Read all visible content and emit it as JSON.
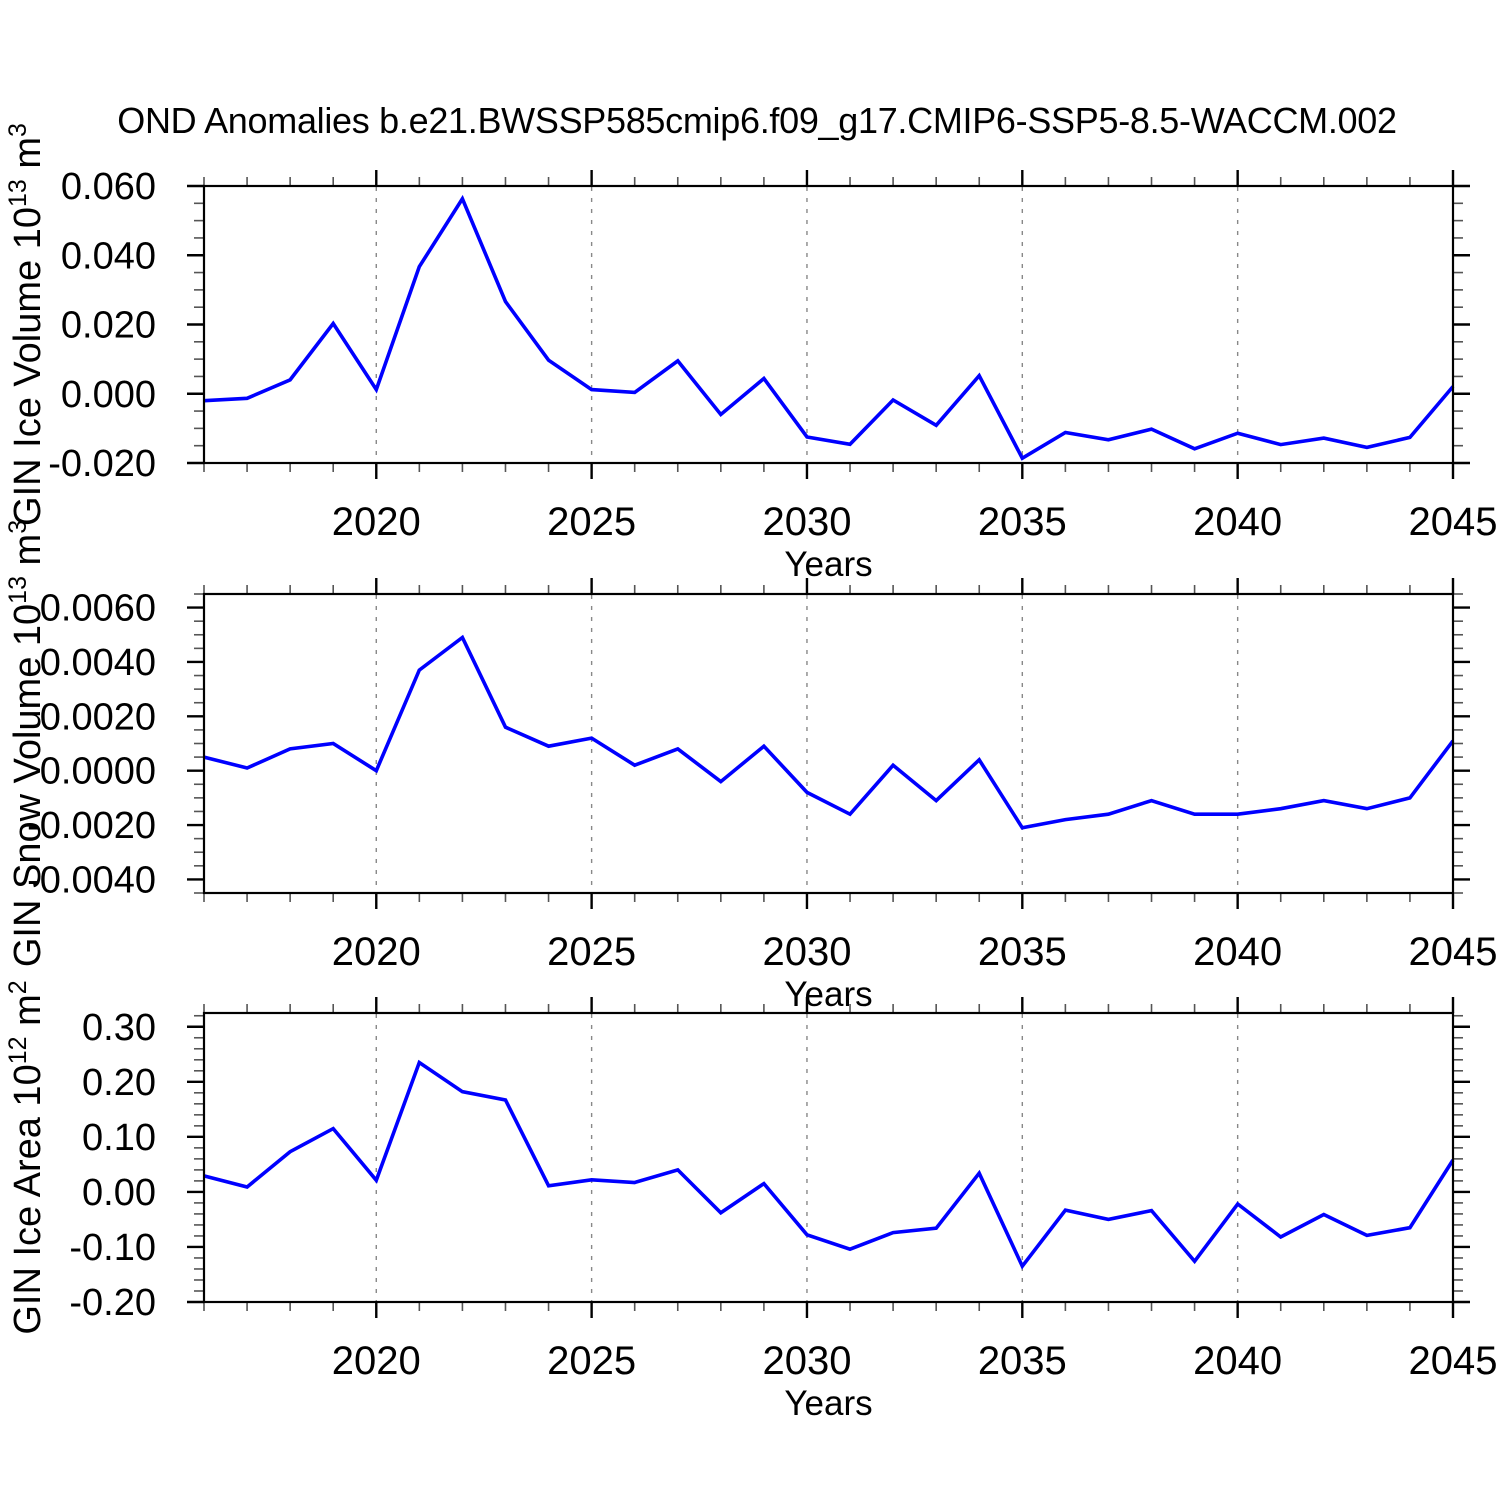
{
  "title": "OND Anomalies b.e21.BWSSP585cmip6.f09_g17.CMIP6-SSP5-8.5-WACCM.002",
  "line_color": "#0000ff",
  "grid_color": "#888888",
  "axis_color": "#000000",
  "minor_tick_color": "#555555",
  "chart_data": [
    {
      "type": "line",
      "ylabel_parts": [
        [
          "t",
          "GIN Ice Volume 10"
        ],
        [
          "s",
          "13"
        ],
        [
          "t",
          " m"
        ],
        [
          "s",
          "3"
        ]
      ],
      "xlabel": "Years",
      "xlim": [
        2016,
        2045
      ],
      "ylim": [
        -0.02,
        0.06
      ],
      "x": [
        2016,
        2017,
        2018,
        2019,
        2020,
        2021,
        2022,
        2023,
        2024,
        2025,
        2026,
        2027,
        2028,
        2029,
        2030,
        2031,
        2032,
        2033,
        2034,
        2035,
        2036,
        2037,
        2038,
        2039,
        2040,
        2041,
        2042,
        2043,
        2044,
        2045
      ],
      "values": [
        -0.002,
        -0.0013,
        0.004,
        0.0203,
        0.0012,
        0.0367,
        0.0563,
        0.0266,
        0.0097,
        0.0012,
        0.0004,
        0.0095,
        -0.006,
        0.0044,
        -0.0125,
        -0.0146,
        -0.0018,
        -0.0091,
        0.0052,
        -0.0186,
        -0.0112,
        -0.0133,
        -0.0102,
        -0.0159,
        -0.0114,
        -0.0147,
        -0.0128,
        -0.0155,
        -0.0126,
        0.0021
      ],
      "y_tick_values": [
        -0.02,
        0.0,
        0.02,
        0.04,
        0.06
      ],
      "y_tick_labels": [
        "-0.020",
        "0.000",
        "0.020",
        "0.040",
        "0.060"
      ],
      "y_minor_step": 0.005,
      "x_tick_values": [
        2020,
        2025,
        2030,
        2035,
        2040,
        2045
      ],
      "x_tick_labels": [
        "2020",
        "2025",
        "2030",
        "2035",
        "2040",
        "2045"
      ],
      "gridline_years": [
        2020,
        2025,
        2030,
        2035,
        2040
      ]
    },
    {
      "type": "line",
      "ylabel_parts": [
        [
          "t",
          "GIN Snow Volume 10"
        ],
        [
          "s",
          "13"
        ],
        [
          "t",
          " m"
        ],
        [
          "s",
          "3"
        ]
      ],
      "xlabel": "Years",
      "xlim": [
        2016,
        2045
      ],
      "ylim": [
        -0.0045,
        0.0065
      ],
      "x": [
        2016,
        2017,
        2018,
        2019,
        2020,
        2021,
        2022,
        2023,
        2024,
        2025,
        2026,
        2027,
        2028,
        2029,
        2030,
        2031,
        2032,
        2033,
        2034,
        2035,
        2036,
        2037,
        2038,
        2039,
        2040,
        2041,
        2042,
        2043,
        2044,
        2045
      ],
      "values": [
        0.0005,
        0.0001,
        0.0008,
        0.001,
        0.0,
        0.0037,
        0.0049,
        0.0016,
        0.0009,
        0.0012,
        0.0002,
        0.0008,
        -0.0004,
        0.0009,
        -0.0008,
        -0.0016,
        0.0002,
        -0.0011,
        0.0004,
        -0.0021,
        -0.0018,
        -0.0016,
        -0.0011,
        -0.0016,
        -0.0016,
        -0.0014,
        -0.0011,
        -0.0014,
        -0.001,
        0.0011
      ],
      "y_tick_values": [
        -0.004,
        -0.002,
        0.0,
        0.002,
        0.004,
        0.006
      ],
      "y_tick_labels": [
        "-0.0040",
        "-0.0020",
        "0.0000",
        "0.0020",
        "0.0040",
        "0.0060"
      ],
      "y_minor_step": 0.0005,
      "x_tick_values": [
        2020,
        2025,
        2030,
        2035,
        2040,
        2045
      ],
      "x_tick_labels": [
        "2020",
        "2025",
        "2030",
        "2035",
        "2040",
        "2045"
      ],
      "gridline_years": [
        2020,
        2025,
        2030,
        2035,
        2040
      ]
    },
    {
      "type": "line",
      "ylabel_parts": [
        [
          "t",
          "GIN Ice Area 10"
        ],
        [
          "s",
          "12"
        ],
        [
          "t",
          " m"
        ],
        [
          "s",
          "2"
        ]
      ],
      "xlabel": "Years",
      "xlim": [
        2016,
        2045
      ],
      "ylim": [
        -0.2,
        0.325
      ],
      "x": [
        2016,
        2017,
        2018,
        2019,
        2020,
        2021,
        2022,
        2023,
        2024,
        2025,
        2026,
        2027,
        2028,
        2029,
        2030,
        2031,
        2032,
        2033,
        2034,
        2035,
        2036,
        2037,
        2038,
        2039,
        2040,
        2041,
        2042,
        2043,
        2044,
        2045
      ],
      "values": [
        0.029,
        0.009,
        0.073,
        0.115,
        0.021,
        0.235,
        0.182,
        0.167,
        0.011,
        0.022,
        0.017,
        0.04,
        -0.038,
        0.015,
        -0.078,
        -0.104,
        -0.074,
        -0.066,
        0.034,
        -0.135,
        -0.033,
        -0.05,
        -0.034,
        -0.126,
        -0.022,
        -0.082,
        -0.041,
        -0.079,
        -0.065,
        0.058
      ],
      "y_tick_values": [
        -0.2,
        -0.1,
        0.0,
        0.1,
        0.2,
        0.3
      ],
      "y_tick_labels": [
        "-0.20",
        "-0.10",
        "0.00",
        "0.10",
        "0.20",
        "0.30"
      ],
      "y_minor_step": 0.02,
      "x_tick_values": [
        2020,
        2025,
        2030,
        2035,
        2040,
        2045
      ],
      "x_tick_labels": [
        "2020",
        "2025",
        "2030",
        "2035",
        "2040",
        "2045"
      ],
      "gridline_years": [
        2020,
        2025,
        2030,
        2035,
        2040
      ]
    }
  ]
}
